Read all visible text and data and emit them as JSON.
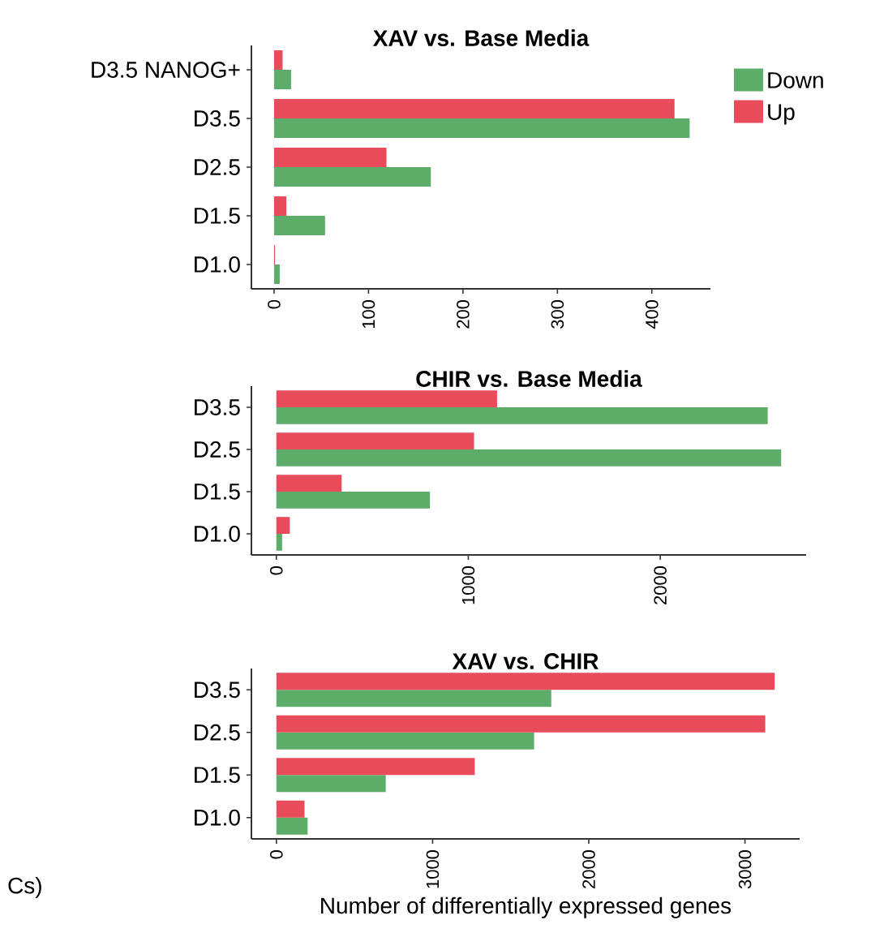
{
  "chart_data": [
    {
      "type": "bar",
      "orientation": "horizontal",
      "title": "XAV vs. Base Media",
      "categories": [
        "D3.5 NANOG+",
        "D3.5",
        "D2.5",
        "D1.5",
        "D1.0"
      ],
      "series": [
        {
          "name": "Down",
          "color": "#5cac6a",
          "values": [
            18,
            440,
            166,
            54,
            6
          ]
        },
        {
          "name": "Up",
          "color": "#e84b5a",
          "values": [
            9,
            424,
            119,
            13,
            1
          ]
        }
      ],
      "xlim": [
        -24,
        462
      ],
      "xticks": [
        0,
        100,
        200,
        300,
        400
      ],
      "legend": "right"
    },
    {
      "type": "bar",
      "orientation": "horizontal",
      "title": "CHIR vs. Base Media",
      "categories": [
        "D3.5",
        "D2.5",
        "D1.5",
        "D1.0"
      ],
      "series": [
        {
          "color": "#5cac6a",
          "values": [
            2560,
            2630,
            800,
            30
          ]
        },
        {
          "color": "#e84b5a",
          "values": [
            1150,
            1030,
            340,
            70
          ]
        }
      ],
      "xlim": [
        -130,
        2760
      ],
      "xticks": [
        0,
        1000,
        2000
      ]
    },
    {
      "type": "bar",
      "orientation": "horizontal",
      "title": "XAV vs. CHIR",
      "xlabel": "Number of differentially expressed genes",
      "categories": [
        "D3.5",
        "D2.5",
        "D1.5",
        "D1.0"
      ],
      "series": [
        {
          "color": "#5cac6a",
          "values": [
            1760,
            1650,
            700,
            200
          ]
        },
        {
          "color": "#e84b5a",
          "values": [
            3190,
            3130,
            1270,
            180
          ]
        }
      ],
      "xlim": [
        -160,
        3350
      ],
      "xticks": [
        0,
        1000,
        2000,
        3000
      ],
      "annotations": [
        "Cs)"
      ]
    }
  ]
}
